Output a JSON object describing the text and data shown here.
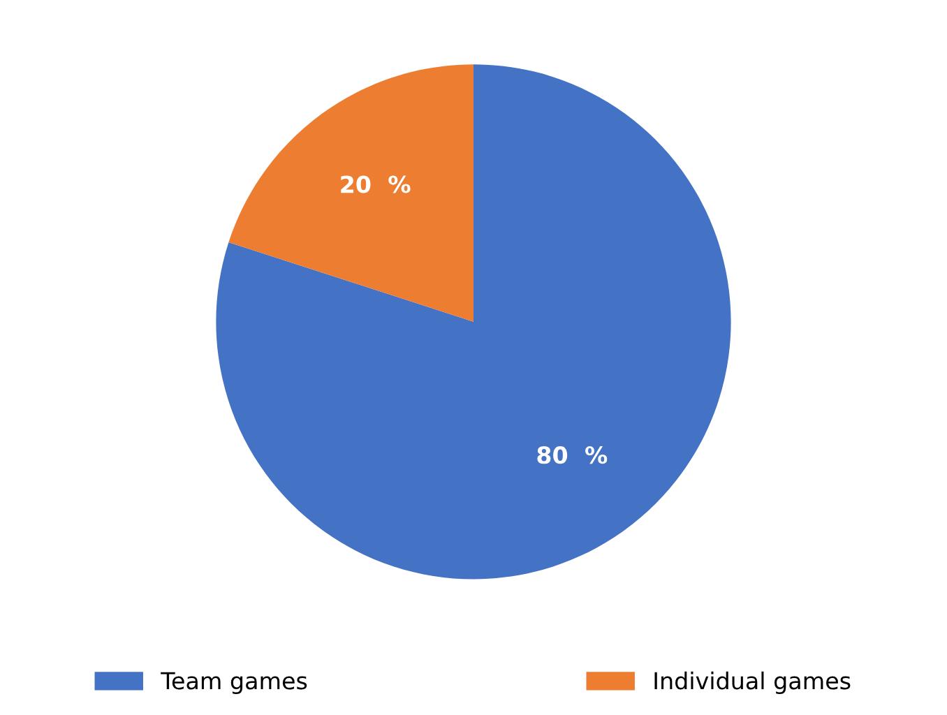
{
  "chart_data": {
    "type": "pie",
    "categories": [
      "Team games",
      "Individual games"
    ],
    "values": [
      80,
      20
    ],
    "colors": [
      "#4472c4",
      "#ed7d31"
    ],
    "value_labels": [
      "80  %",
      "20  %"
    ],
    "legend": "bottom"
  }
}
